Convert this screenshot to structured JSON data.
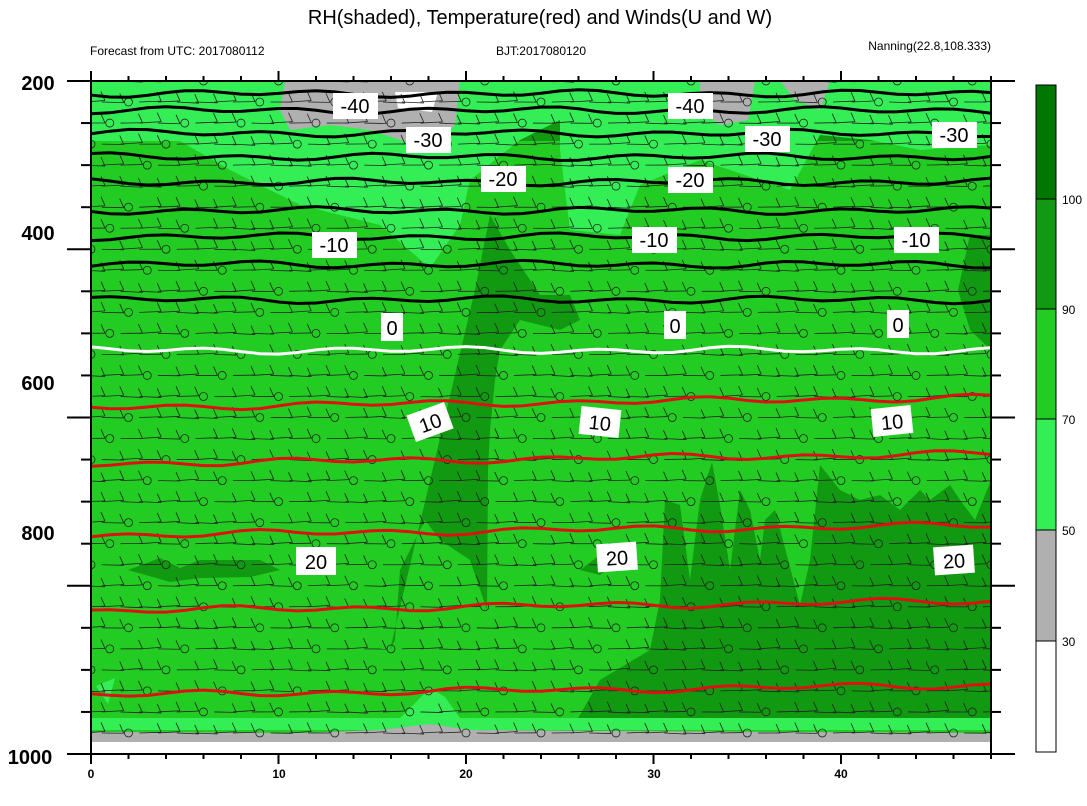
{
  "chart_data": {
    "type": "contour",
    "title": "RH(shaded), Temperature(red) and Winds(U and W)",
    "subtitle_left": "Forecast from UTC: 2017080112",
    "subtitle_center": "BJT:2017080120",
    "subtitle_right": "Nanning(22.8,108.333)",
    "x_ticks": [
      "0",
      "10",
      "20",
      "30",
      "40"
    ],
    "y_ticks": [
      "200",
      "400",
      "600",
      "800",
      "1000"
    ],
    "xlim": [
      0,
      48
    ],
    "ylim": [
      1000,
      200
    ],
    "colorbar": {
      "levels": [
        30,
        50,
        70,
        90,
        100
      ],
      "colors": [
        "#ffffff",
        "#b0b0b0",
        "#33ee55",
        "#22cc22",
        "#119911",
        "#007700"
      ]
    },
    "isotherm_labels": [
      "-40",
      "-30",
      "-20",
      "-10",
      "0",
      "10",
      "20"
    ],
    "isotherms": [
      {
        "value": -45,
        "pressure": 215
      },
      {
        "value": -40,
        "pressure": 235
      },
      {
        "value": -35,
        "pressure": 262
      },
      {
        "value": -30,
        "pressure": 290
      },
      {
        "value": -25,
        "pressure": 320
      },
      {
        "value": -20,
        "pressure": 354
      },
      {
        "value": -15,
        "pressure": 385
      },
      {
        "value": -10,
        "pressure": 418
      },
      {
        "value": -5,
        "pressure": 460
      },
      {
        "value": 0,
        "pressure": 520
      },
      {
        "value": 5,
        "pressure": 588
      },
      {
        "value": 10,
        "pressure": 655
      },
      {
        "value": 15,
        "pressure": 740
      },
      {
        "value": 20,
        "pressure": 830
      },
      {
        "value": 25,
        "pressure": 930
      }
    ]
  }
}
